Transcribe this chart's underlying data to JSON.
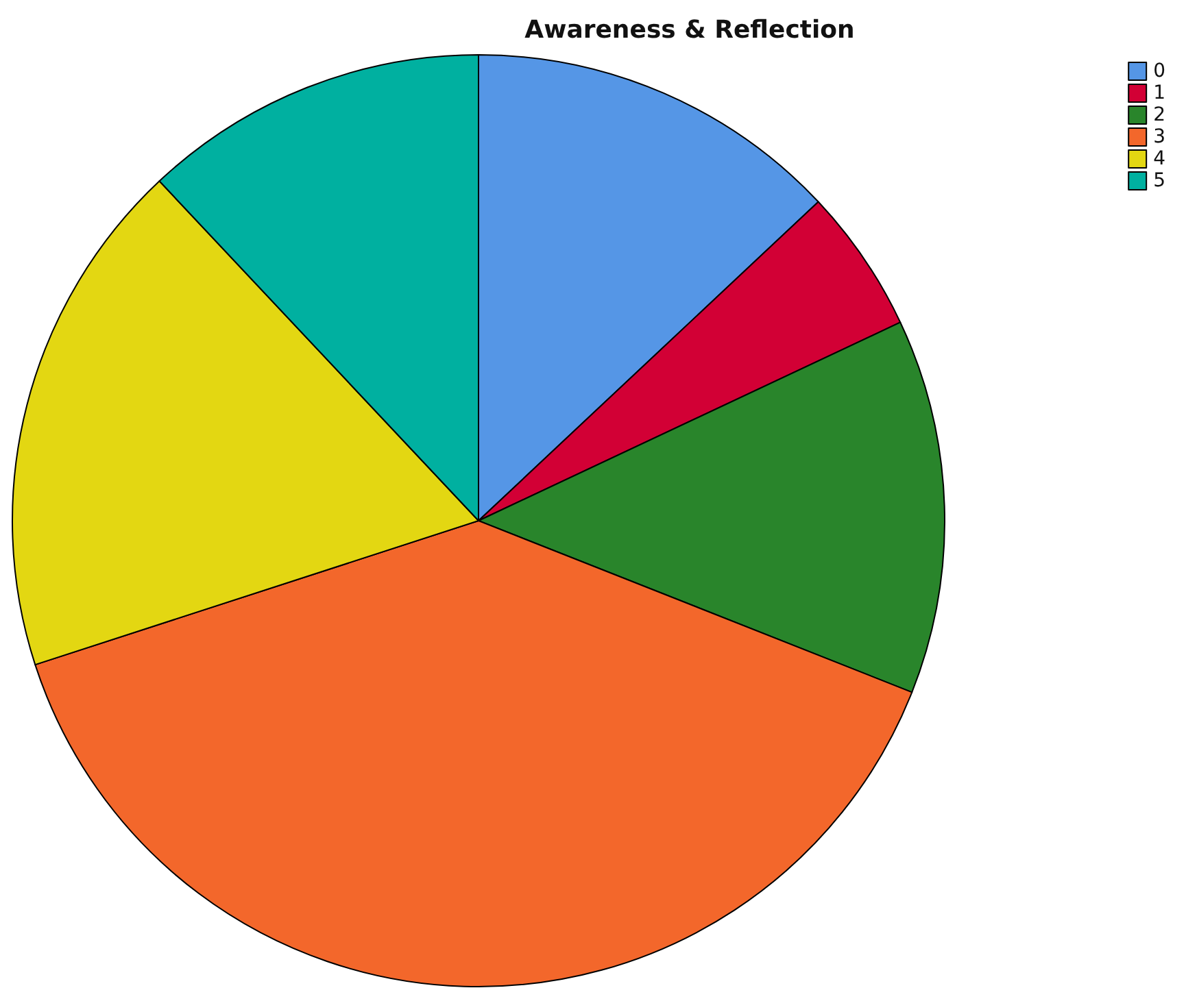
{
  "chart_data": {
    "type": "pie",
    "title": "Awareness & Reflection",
    "categories": [
      "0",
      "1",
      "2",
      "3",
      "4",
      "5"
    ],
    "values": [
      13,
      5,
      13,
      39,
      18,
      12
    ],
    "colors": [
      "#5596e6",
      "#d20035",
      "#29852b",
      "#f3672b",
      "#e3d712",
      "#00b0a0"
    ],
    "legend": "top right"
  }
}
